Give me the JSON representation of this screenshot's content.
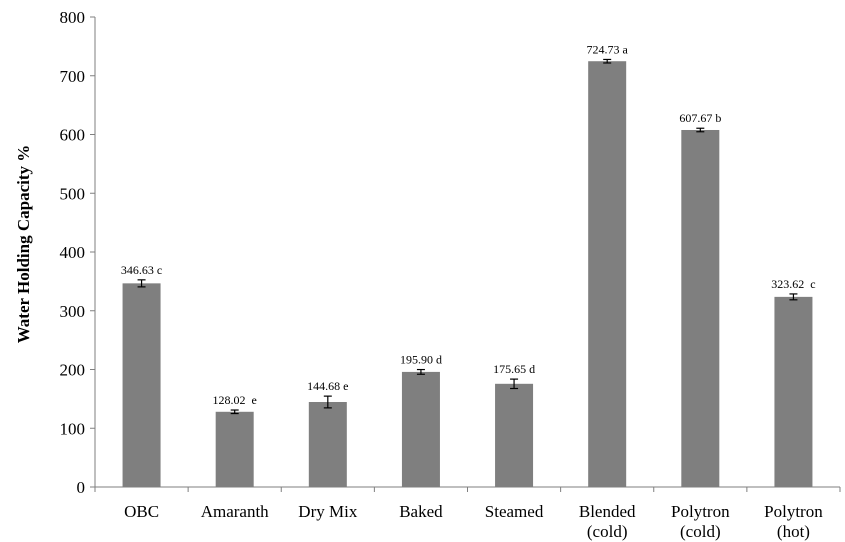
{
  "chart_data": {
    "type": "bar",
    "title": "",
    "xlabel": "",
    "ylabel": "Water Holding Capacity %",
    "ylim": [
      0,
      800
    ],
    "yticks": [
      "0",
      "100",
      "200",
      "300",
      "400",
      "500",
      "600",
      "700",
      "800"
    ],
    "grid": false,
    "bar_color": "#7f7f7f",
    "categories": [
      [
        "OBC"
      ],
      [
        "Amaranth"
      ],
      [
        "Dry Mix"
      ],
      [
        "Baked"
      ],
      [
        "Steamed"
      ],
      [
        "Blended",
        "(cold)"
      ],
      [
        "Polytron",
        "(cold)"
      ],
      [
        "Polytron",
        "(hot)"
      ]
    ],
    "values": [
      346.63,
      128.02,
      144.68,
      195.9,
      175.65,
      724.73,
      607.67,
      323.62
    ],
    "errors": [
      6,
      3,
      10,
      4,
      8,
      3,
      3,
      5
    ],
    "data_labels": [
      "346.63 c",
      "128.02  e",
      "144.68 e",
      "195.90 d",
      "175.65 d",
      "724.73 a",
      "607.67 b",
      "323.62  c"
    ]
  }
}
